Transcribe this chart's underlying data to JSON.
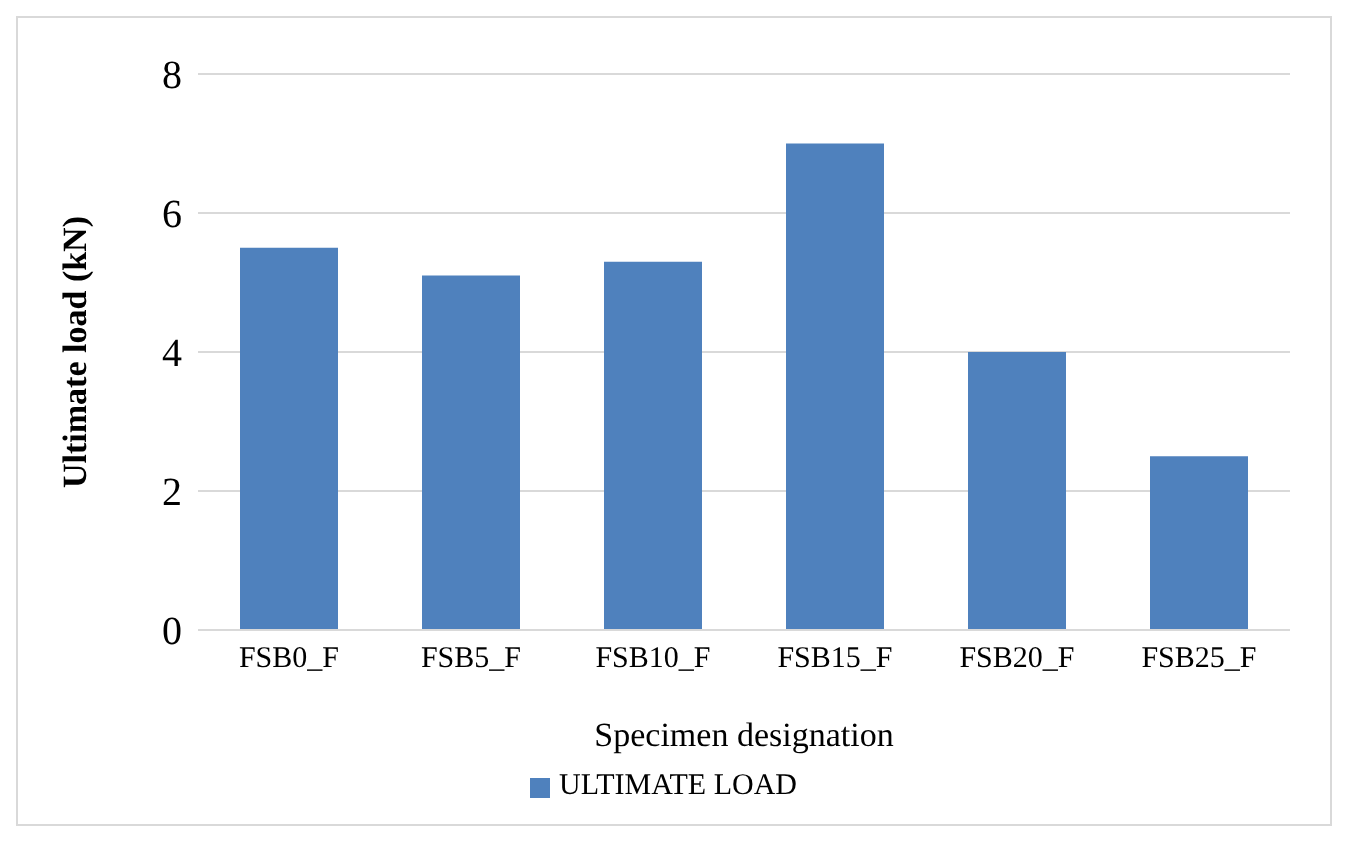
{
  "chart_data": {
    "type": "bar",
    "xlabel": "Specimen designation",
    "ylabel": "Ultimate load (kN)",
    "categories": [
      "FSB0_F",
      "FSB5_F",
      "FSB10_F",
      "FSB15_F",
      "FSB20_F",
      "FSB25_F"
    ],
    "series": [
      {
        "name": "ULTIMATE LOAD",
        "color": "#4f81bd",
        "values": [
          5.5,
          5.1,
          5.3,
          7.0,
          4.0,
          2.5
        ]
      }
    ],
    "ylim": [
      0,
      8
    ],
    "yticks": [
      0,
      2,
      4,
      6,
      8
    ],
    "grid": "y",
    "legend": "bottom"
  }
}
